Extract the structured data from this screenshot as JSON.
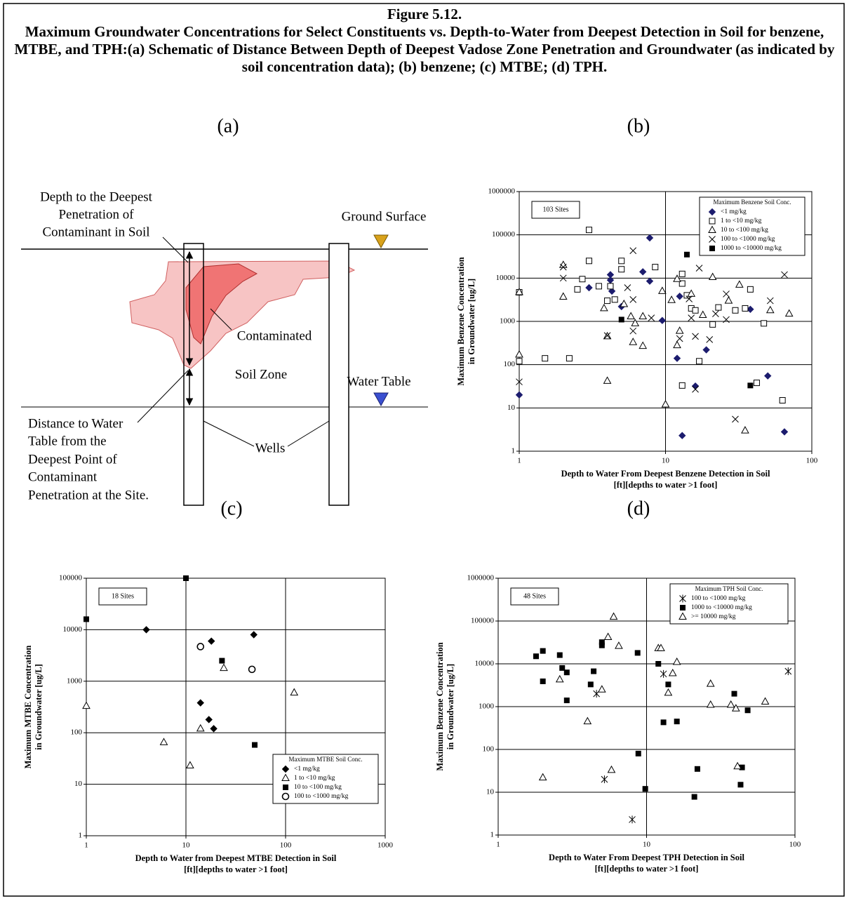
{
  "figure": {
    "title": "Figure 5.12.",
    "caption": "Maximum Groundwater Concentrations for Select Constituents vs. Depth-to-Water from Deepest Detection in Soil for benzene, MTBE, and TPH:(a) Schematic of Distance Between Depth of Deepest Vadose Zone Penetration and Groundwater (as indicated by soil concentration data); (b) benzene; (c) MTBE; (d) TPH."
  },
  "schematic": {
    "panel_label": "(a)",
    "labels": [
      "Depth to the Deepest",
      "Penetration of",
      "Contaminant in Soil",
      "Ground Surface",
      "Contaminated",
      "Soil Zone",
      "Water Table",
      "Distance to Water",
      "Table from the",
      "Deepest Point of",
      "Contaminant",
      "Penetration at the Site.",
      "Wells"
    ]
  },
  "chart_data": [
    {
      "type": "scatter",
      "panel_label": "(b)",
      "log_x": true,
      "log_y": true,
      "grid": true,
      "xlabel": [
        "Depth to Water From Deepest Benzene Detection in Soil",
        "[ft][depths to water >1 foot]"
      ],
      "ylabel": [
        "Maximum Benzene Concentration",
        "in Groundwater [ug/L]"
      ],
      "annotation": "103 Sites",
      "legend_title": "Maximum Benzene Soil Conc.",
      "legend_loc": "upper right",
      "xlim": [
        1,
        100
      ],
      "xticks": [
        1,
        10,
        100
      ],
      "ylim": [
        1,
        1000000
      ],
      "yticks": [
        1,
        10,
        100,
        1000,
        10000,
        100000,
        1000000
      ],
      "series": [
        {
          "name": "<1 mg/kg",
          "marker": "diamond",
          "color": "#1c1c6e",
          "x": [
            1,
            3,
            4.2,
            4.2,
            4.3,
            5,
            7,
            7.8,
            7.8,
            9.5,
            12,
            12.5,
            13,
            16,
            19,
            38,
            50,
            65
          ],
          "y": [
            20,
            6000,
            12000,
            9000,
            5000,
            2200,
            14000,
            85000,
            8500,
            1050,
            140,
            3800,
            2.3,
            32,
            220,
            1900,
            55,
            2.8
          ]
        },
        {
          "name": "1 to <10 mg/kg",
          "marker": "square-open",
          "color": "#000000",
          "x": [
            1,
            1,
            1.5,
            2.2,
            2.5,
            2.7,
            3,
            3,
            3.5,
            4,
            4.2,
            4.5,
            5,
            5,
            8.5,
            13,
            13,
            13,
            14,
            15,
            16,
            17,
            21,
            23,
            30,
            35,
            38,
            42,
            47,
            63
          ],
          "y": [
            4700,
            120,
            140,
            140,
            5500,
            9500,
            130000,
            25000,
            6500,
            3000,
            6500,
            3200,
            25000,
            16000,
            18000,
            33,
            12500,
            7500,
            4000,
            2000,
            1800,
            120,
            850,
            2100,
            1800,
            2000,
            5500,
            38,
            900,
            15
          ]
        },
        {
          "name": "10 to <100 mg/kg",
          "marker": "triangle-open",
          "color": "#000000",
          "x": [
            1,
            1,
            2,
            2,
            3.8,
            4,
            4,
            5.2,
            5.8,
            6,
            6.2,
            7,
            7,
            9.5,
            10,
            11,
            12,
            12,
            12.5,
            15,
            18,
            21,
            27,
            32,
            35,
            52,
            70
          ],
          "y": [
            4700,
            170,
            20000,
            3700,
            2000,
            450,
            42,
            2500,
            1300,
            330,
            900,
            1300,
            270,
            5000,
            12,
            3100,
            280,
            9500,
            600,
            4300,
            1400,
            10500,
            3000,
            7000,
            3,
            1800,
            1500
          ]
        },
        {
          "name": "100 to <1000 mg/kg",
          "marker": "x",
          "color": "#000000",
          "x": [
            1,
            2,
            2,
            4,
            5.5,
            6,
            6,
            6,
            8,
            12.5,
            14.5,
            15,
            16,
            17,
            16,
            20,
            22,
            26,
            26,
            30,
            52,
            65
          ],
          "y": [
            40,
            10000,
            18000,
            470,
            6000,
            43000,
            3200,
            600,
            1200,
            400,
            3300,
            1200,
            450,
            17000,
            27,
            380,
            1500,
            4300,
            1100,
            5.5,
            3000,
            12000
          ]
        },
        {
          "name": "1000 to <10000 mg/kg",
          "marker": "square",
          "color": "#000000",
          "x": [
            5,
            14,
            38
          ],
          "y": [
            1100,
            35000,
            33
          ]
        }
      ]
    },
    {
      "type": "scatter",
      "panel_label": "(c)",
      "log_x": true,
      "log_y": true,
      "grid": true,
      "xlabel": [
        "Depth to Water from Deepest MTBE Detection in Soil",
        "[ft][depths to water >1 foot]"
      ],
      "ylabel": [
        "Maximum MTBE Concentration",
        "in Groundwater [ug/L]"
      ],
      "annotation": "18 Sites",
      "legend_title": "Maximum MTBE Soil Conc.",
      "legend_loc": "lower right",
      "xlim": [
        1,
        1000
      ],
      "xticks": [
        1,
        10,
        100,
        1000
      ],
      "ylim": [
        1,
        100000
      ],
      "yticks": [
        1,
        10,
        100,
        1000,
        10000,
        100000
      ],
      "series": [
        {
          "name": "<1 mg/kg",
          "marker": "diamond",
          "color": "#000000",
          "x": [
            4,
            18,
            48,
            14,
            17,
            19
          ],
          "y": [
            10000,
            6000,
            8000,
            380,
            180,
            120
          ]
        },
        {
          "name": "1 to <10 mg/kg",
          "marker": "triangle-open",
          "color": "#000000",
          "x": [
            1,
            6,
            11,
            14,
            24,
            122
          ],
          "y": [
            330,
            65,
            23,
            120,
            1800,
            600
          ]
        },
        {
          "name": "10 to <100 mg/kg",
          "marker": "square",
          "color": "#000000",
          "x": [
            1,
            10,
            23,
            49
          ],
          "y": [
            16000,
            100000,
            2500,
            58
          ]
        },
        {
          "name": "100 to <1000 mg/kg",
          "marker": "circle-open",
          "color": "#000000",
          "x": [
            14,
            46
          ],
          "y": [
            4700,
            1700
          ]
        }
      ]
    },
    {
      "type": "scatter",
      "panel_label": "(d)",
      "log_x": true,
      "log_y": true,
      "grid": true,
      "xlabel": [
        "Depth to Water From Deepest TPH Detection in Soil",
        "[ft][depths to water >1 foot]"
      ],
      "ylabel": [
        "Maximum Benzene Concentration",
        "in Groundwater [ug/L]"
      ],
      "annotation": "48 Sites",
      "legend_title": "Maximum TPH Soil Conc.",
      "legend_loc": "upper right",
      "xlim": [
        1,
        100
      ],
      "xticks": [
        1,
        10,
        100
      ],
      "ylim": [
        1,
        1000000
      ],
      "yticks": [
        1,
        10,
        100,
        1000,
        10000,
        100000,
        1000000
      ],
      "series": [
        {
          "name": "100 to <1000 mg/kg",
          "marker": "asterisk",
          "color": "#000000",
          "x": [
            4.6,
            5.2,
            8,
            13,
            90
          ],
          "y": [
            2000,
            20,
            2.3,
            5800,
            6700
          ]
        },
        {
          "name": "1000 to <10000 mg/kg",
          "marker": "square",
          "color": "#000000",
          "x": [
            1.8,
            2,
            2,
            2.6,
            2.7,
            2.9,
            2.9,
            4.2,
            4.4,
            5,
            5,
            8.7,
            8.8,
            9.8,
            12,
            13,
            14,
            16,
            21,
            22,
            39,
            43,
            44,
            48
          ],
          "y": [
            15000,
            20000,
            3900,
            16000,
            8000,
            6300,
            1400,
            3300,
            6700,
            27000,
            32000,
            18000,
            80,
            12,
            10000,
            430,
            3300,
            450,
            7.8,
            35,
            2000,
            15,
            38,
            820
          ]
        },
        {
          "name": ">= 10000 mg/kg",
          "marker": "triangle-open",
          "color": "#000000",
          "x": [
            2,
            2.6,
            4,
            5,
            5.5,
            5.8,
            6,
            6.5,
            12,
            12.5,
            14,
            15,
            16,
            27,
            27,
            37,
            40,
            41,
            63
          ],
          "y": [
            22,
            4300,
            450,
            2500,
            42000,
            33,
            125000,
            26000,
            23000,
            23000,
            2100,
            6000,
            11000,
            1100,
            3400,
            1100,
            900,
            40,
            1300
          ]
        }
      ]
    }
  ]
}
